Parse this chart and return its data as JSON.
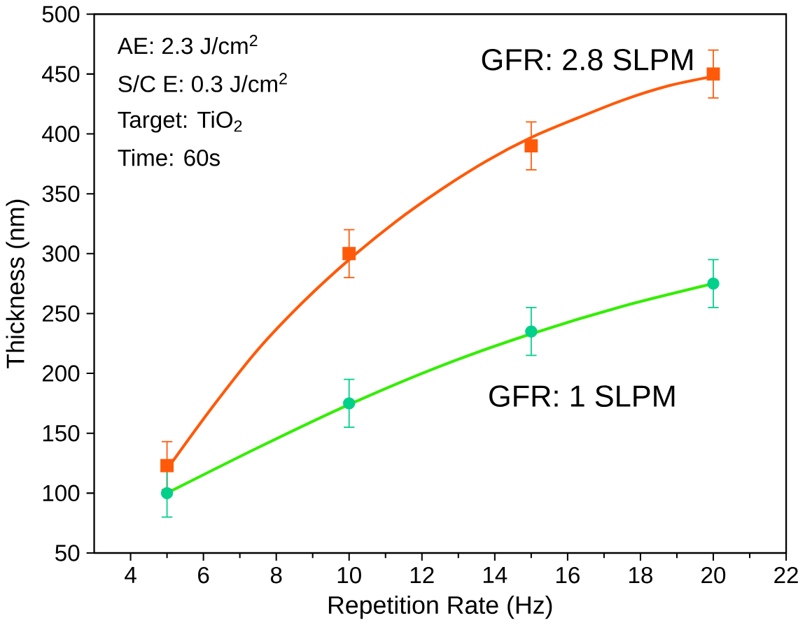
{
  "chart_data": {
    "type": "scatter",
    "xlabel": "Repetition Rate (Hz)",
    "ylabel": "Thickness (nm)",
    "xlim": [
      3,
      22
    ],
    "xticks": [
      4,
      6,
      8,
      10,
      12,
      14,
      16,
      18,
      20,
      22
    ],
    "ylim": [
      50,
      500
    ],
    "yticks": [
      50,
      100,
      150,
      200,
      250,
      300,
      350,
      400,
      450,
      500
    ],
    "grid": false,
    "series": [
      {
        "type": "line",
        "color": "#ff5a0a",
        "marker": "none",
        "x": [
          5,
          6.25,
          7.5,
          8.75,
          10,
          11.25,
          12.5,
          13.75,
          15,
          16.25,
          17.5,
          18.75,
          20
        ],
        "values": [
          120,
          172,
          220,
          260,
          295,
          326,
          353,
          377,
          397,
          413,
          428,
          440,
          448
        ]
      },
      {
        "type": "line",
        "color": "#33ee00",
        "marker": "none",
        "x": [
          5,
          7.5,
          10,
          12.5,
          15,
          17.5,
          20
        ],
        "values": [
          100,
          138,
          174,
          206,
          233,
          256,
          275
        ]
      },
      {
        "name": "GFR: 2.8 SLPM",
        "color": "#ff5a0a",
        "marker": "square",
        "x": [
          5,
          10,
          15,
          20
        ],
        "values": [
          123,
          300,
          390,
          450
        ],
        "errors": [
          20,
          20,
          20,
          20
        ]
      },
      {
        "name": "GFR: 1 SLPM",
        "color": "#00d08a",
        "marker": "circle",
        "x": [
          5,
          10,
          15,
          20
        ],
        "values": [
          100,
          175,
          235,
          275
        ],
        "errors": [
          20,
          20,
          20,
          20
        ]
      }
    ],
    "annotations": [
      "AE: 2.3 J/cm$^{2}$",
      "S/C E: 0.3 J/cm$^{2}$",
      "Target: TiO$_{2}$",
      "Time: 60s"
    ]
  }
}
